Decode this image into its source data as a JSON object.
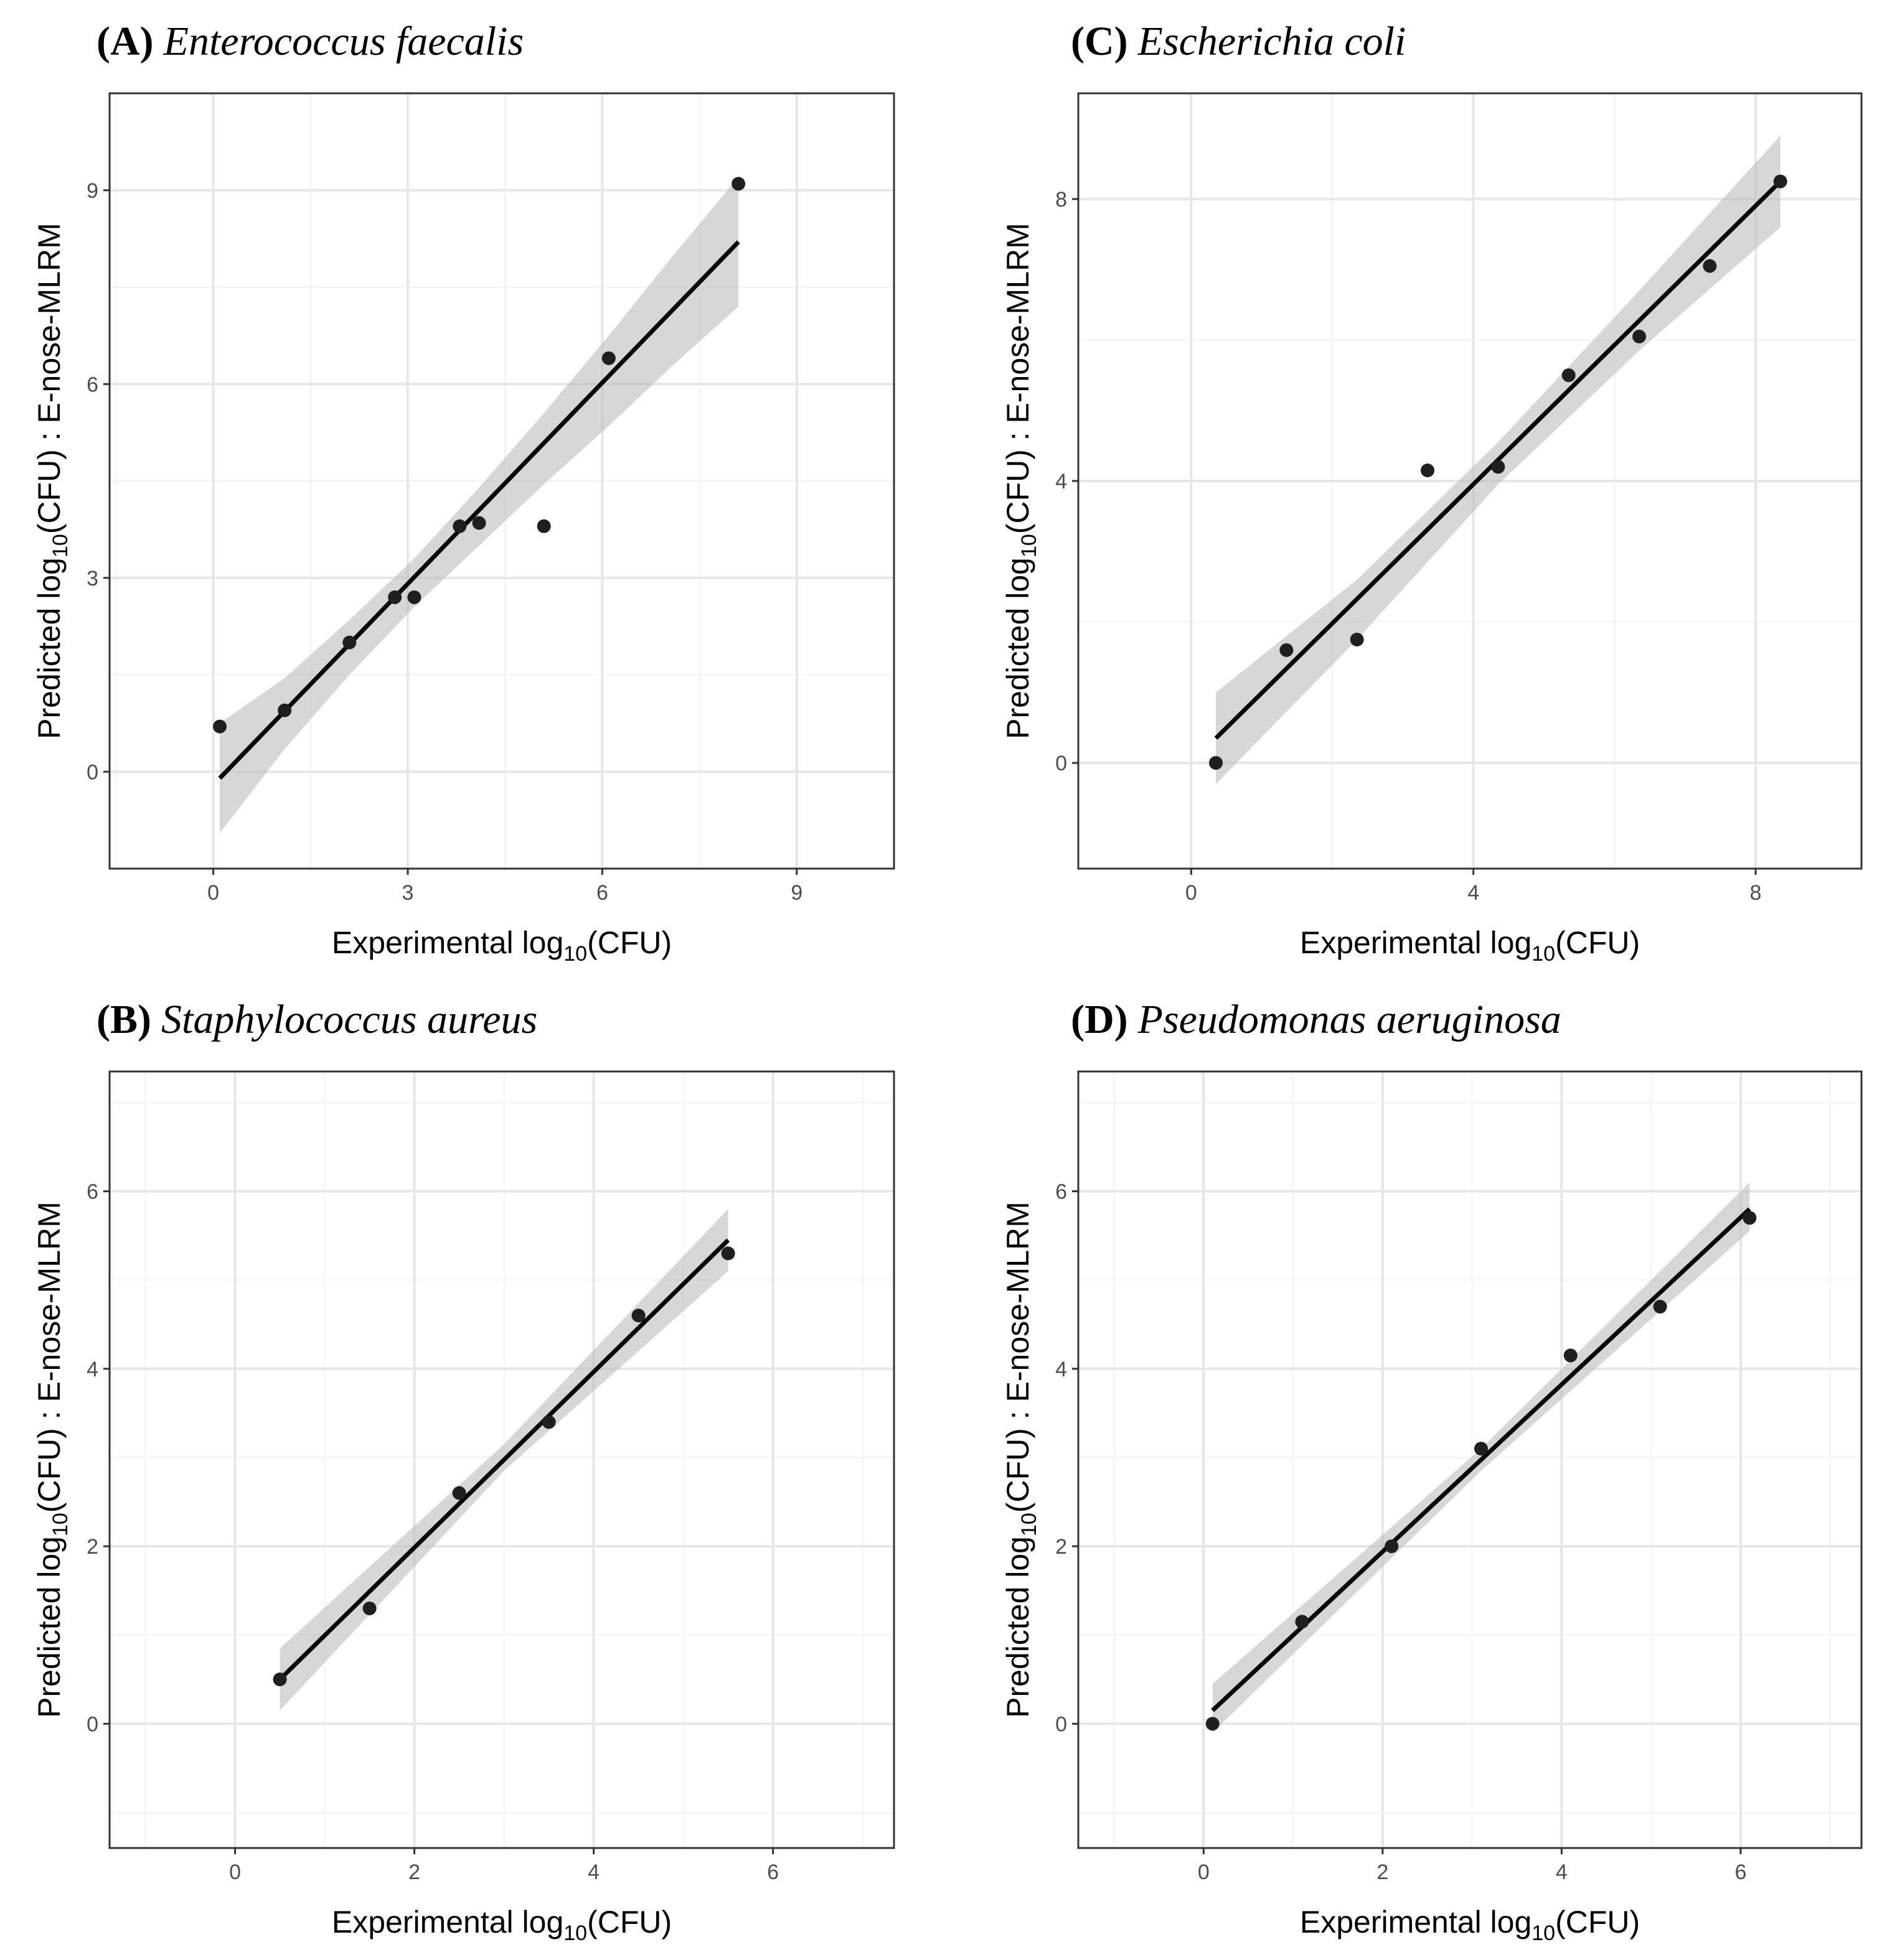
{
  "chart_data": [
    {
      "id": "A",
      "type": "scatter",
      "panel_label": "(A)",
      "species": "Enterococcus faecalis",
      "xlabel_pre": "Experimental log",
      "xlabel_sub": "10",
      "xlabel_post": "(CFU)",
      "ylabel_pre": "Predicted log",
      "ylabel_sub": "10",
      "ylabel_post": "(CFU) : E-nose-MLRM",
      "xlim": [
        -1.6,
        10.5
      ],
      "ylim": [
        -1.5,
        10.5
      ],
      "xticks": [
        0,
        3,
        6,
        9
      ],
      "yticks": [
        0,
        3,
        6,
        9
      ],
      "x_minor": [
        -1.5,
        1.5,
        4.5,
        7.5,
        10.5
      ],
      "y_minor": [
        -1.5,
        1.5,
        4.5,
        7.5,
        10.5
      ],
      "points": [
        {
          "x": 0.1,
          "y": 0.7
        },
        {
          "x": 1.1,
          "y": 0.95
        },
        {
          "x": 2.1,
          "y": 2.0
        },
        {
          "x": 2.8,
          "y": 2.7
        },
        {
          "x": 3.1,
          "y": 2.7
        },
        {
          "x": 3.8,
          "y": 3.8
        },
        {
          "x": 4.1,
          "y": 3.85
        },
        {
          "x": 5.1,
          "y": 3.8
        },
        {
          "x": 6.1,
          "y": 6.4
        },
        {
          "x": 8.1,
          "y": 9.1
        }
      ],
      "fit": {
        "x0": 0.1,
        "x1": 8.1,
        "y0": -0.1,
        "y1": 8.2
      },
      "ci": [
        {
          "x": 0.1,
          "lo": -0.95,
          "hi": 0.75
        },
        {
          "x": 1.1,
          "lo": 0.35,
          "hi": 1.45
        },
        {
          "x": 2.1,
          "lo": 1.5,
          "hi": 2.35
        },
        {
          "x": 3.1,
          "lo": 2.55,
          "hi": 3.3
        },
        {
          "x": 4.1,
          "lo": 3.5,
          "hi": 4.4
        },
        {
          "x": 5.1,
          "lo": 4.45,
          "hi": 5.55
        },
        {
          "x": 6.1,
          "lo": 5.35,
          "hi": 6.75
        },
        {
          "x": 7.1,
          "lo": 6.3,
          "hi": 8.0
        },
        {
          "x": 8.1,
          "lo": 7.2,
          "hi": 9.2
        }
      ]
    },
    {
      "id": "C",
      "type": "scatter",
      "panel_label": "(C)",
      "species": "Escherichia coli",
      "xlabel_pre": "Experimental log",
      "xlabel_sub": "10",
      "xlabel_post": "(CFU)",
      "ylabel_pre": "Predicted log",
      "ylabel_sub": "10",
      "ylabel_post": "(CFU) : E-nose-MLRM",
      "xlim": [
        -1.6,
        9.5
      ],
      "ylim": [
        -1.5,
        9.5
      ],
      "xticks": [
        0,
        4,
        8
      ],
      "yticks": [
        0,
        4,
        8
      ],
      "x_minor": [
        -2,
        2,
        6,
        10
      ],
      "y_minor": [
        -2,
        2,
        6,
        10
      ],
      "points": [
        {
          "x": 0.35,
          "y": 0.0
        },
        {
          "x": 1.35,
          "y": 1.6
        },
        {
          "x": 2.35,
          "y": 1.75
        },
        {
          "x": 3.35,
          "y": 4.15
        },
        {
          "x": 4.35,
          "y": 4.2
        },
        {
          "x": 5.35,
          "y": 5.5
        },
        {
          "x": 6.35,
          "y": 6.05
        },
        {
          "x": 7.35,
          "y": 7.05
        },
        {
          "x": 8.35,
          "y": 8.25
        }
      ],
      "fit": {
        "x0": 0.35,
        "x1": 8.35,
        "y0": 0.35,
        "y1": 8.25
      },
      "ci": [
        {
          "x": 0.35,
          "lo": -0.3,
          "hi": 1.0
        },
        {
          "x": 2.35,
          "lo": 1.75,
          "hi": 2.6
        },
        {
          "x": 4.35,
          "lo": 3.95,
          "hi": 4.55
        },
        {
          "x": 6.35,
          "lo": 5.85,
          "hi": 6.7
        },
        {
          "x": 8.35,
          "lo": 7.6,
          "hi": 8.9
        }
      ]
    },
    {
      "id": "B",
      "type": "scatter",
      "panel_label": "(B)",
      "species": "Staphylococcus aureus",
      "xlabel_pre": "Experimental log",
      "xlabel_sub": "10",
      "xlabel_post": "(CFU)",
      "ylabel_pre": "Predicted log",
      "ylabel_sub": "10",
      "ylabel_post": "(CFU) : E-nose-MLRM",
      "xlim": [
        -1.4,
        7.35
      ],
      "ylim": [
        -1.4,
        7.35
      ],
      "xticks": [
        0,
        2,
        4,
        6
      ],
      "yticks": [
        0,
        2,
        4,
        6
      ],
      "x_minor": [
        -1,
        1,
        3,
        5,
        7
      ],
      "y_minor": [
        -1,
        1,
        3,
        5,
        7
      ],
      "points": [
        {
          "x": 0.5,
          "y": 0.5
        },
        {
          "x": 1.5,
          "y": 1.3
        },
        {
          "x": 2.5,
          "y": 2.6
        },
        {
          "x": 3.5,
          "y": 3.4
        },
        {
          "x": 4.5,
          "y": 4.6
        },
        {
          "x": 5.5,
          "y": 5.3
        }
      ],
      "fit": {
        "x0": 0.5,
        "x1": 5.5,
        "y0": 0.5,
        "y1": 5.45
      },
      "ci": [
        {
          "x": 0.5,
          "lo": 0.15,
          "hi": 0.85
        },
        {
          "x": 3.0,
          "lo": 2.85,
          "hi": 3.15
        },
        {
          "x": 5.5,
          "lo": 5.1,
          "hi": 5.8
        }
      ]
    },
    {
      "id": "D",
      "type": "scatter",
      "panel_label": "(D)",
      "species": "Pseudomonas aeruginosa",
      "xlabel_pre": "Experimental log",
      "xlabel_sub": "10",
      "xlabel_post": "(CFU)",
      "ylabel_pre": "Predicted log",
      "ylabel_sub": "10",
      "ylabel_post": "(CFU) : E-nose-MLRM",
      "xlim": [
        -1.4,
        7.35
      ],
      "ylim": [
        -1.4,
        7.35
      ],
      "xticks": [
        0,
        2,
        4,
        6
      ],
      "yticks": [
        0,
        2,
        4,
        6
      ],
      "x_minor": [
        -1,
        1,
        3,
        5,
        7
      ],
      "y_minor": [
        -1,
        1,
        3,
        5,
        7
      ],
      "points": [
        {
          "x": 0.1,
          "y": 0.0
        },
        {
          "x": 1.1,
          "y": 1.15
        },
        {
          "x": 2.1,
          "y": 2.0
        },
        {
          "x": 3.1,
          "y": 3.1
        },
        {
          "x": 4.1,
          "y": 4.15
        },
        {
          "x": 5.1,
          "y": 4.7
        },
        {
          "x": 6.1,
          "y": 5.7
        }
      ],
      "fit": {
        "x0": 0.1,
        "x1": 6.1,
        "y0": 0.15,
        "y1": 5.8
      },
      "ci": [
        {
          "x": 0.1,
          "lo": -0.1,
          "hi": 0.45
        },
        {
          "x": 3.1,
          "lo": 2.85,
          "hi": 3.1
        },
        {
          "x": 6.1,
          "lo": 5.55,
          "hi": 6.1
        }
      ]
    }
  ]
}
